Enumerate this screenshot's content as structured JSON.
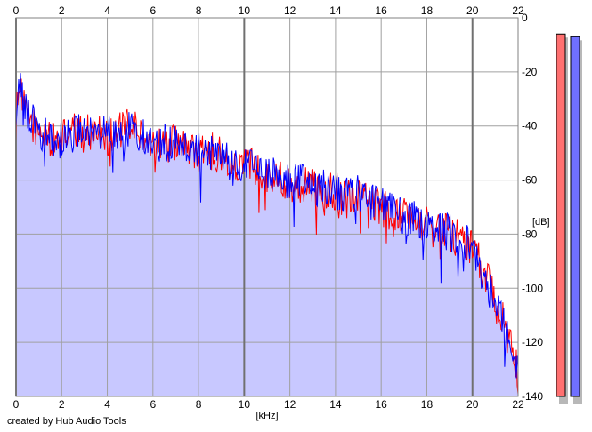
{
  "credit": "created by Hub Audio Tools",
  "chart_data": {
    "type": "area",
    "xlabel": "[kHz]",
    "ylabel": "[dB]",
    "xlim": [
      0,
      22
    ],
    "ylim": [
      -140,
      0
    ],
    "xticks": [
      0,
      2,
      4,
      6,
      8,
      10,
      12,
      14,
      16,
      18,
      20,
      22
    ],
    "xtick_labels": [
      "0",
      "2",
      "4",
      "6",
      "8",
      "10",
      "12",
      "14",
      "16",
      "18",
      "20",
      "22"
    ],
    "yticks": [
      0,
      -20,
      -40,
      -60,
      -80,
      -100,
      -120,
      -140
    ],
    "ytick_labels": [
      "0",
      "-20",
      "-40",
      "-60",
      "-80",
      "-100",
      "-120",
      "-140"
    ],
    "grid": true,
    "fill_color": "#c8c8ff",
    "series": [
      {
        "color": "#ff0000",
        "x": [
          0,
          0.1,
          0.2,
          0.3,
          0.5,
          0.8,
          1.0,
          1.3,
          1.6,
          2.0,
          2.5,
          3.0,
          3.5,
          4.0,
          4.5,
          5.0,
          5.5,
          6.0,
          6.5,
          7.0,
          7.5,
          8.0,
          8.5,
          9.0,
          9.5,
          10.0,
          10.5,
          11.0,
          11.5,
          12.0,
          12.5,
          13.0,
          13.5,
          14.0,
          14.5,
          15.0,
          15.5,
          16.0,
          16.5,
          17.0,
          17.5,
          18.0,
          18.5,
          19.0,
          19.5,
          20.0,
          20.3,
          20.6,
          21.0,
          21.3,
          21.6,
          21.8,
          22.0
        ],
        "values": [
          -40,
          -22,
          -28,
          -32,
          -36,
          -40,
          -44,
          -42,
          -46,
          -44,
          -42,
          -43,
          -41,
          -44,
          -42,
          -40,
          -43,
          -45,
          -47,
          -46,
          -48,
          -50,
          -49,
          -51,
          -53,
          -54,
          -55,
          -58,
          -59,
          -61,
          -62,
          -62,
          -64,
          -64,
          -65,
          -66,
          -67,
          -70,
          -72,
          -73,
          -75,
          -76,
          -78,
          -80,
          -82,
          -85,
          -90,
          -96,
          -102,
          -110,
          -118,
          -124,
          -133
        ]
      },
      {
        "color": "#0000ff",
        "x": [
          0,
          0.1,
          0.2,
          0.3,
          0.5,
          0.8,
          1.0,
          1.3,
          1.6,
          2.0,
          2.5,
          3.0,
          3.5,
          4.0,
          4.5,
          5.0,
          5.5,
          6.0,
          6.5,
          7.0,
          7.5,
          8.0,
          8.5,
          9.0,
          9.5,
          10.0,
          10.5,
          11.0,
          11.5,
          12.0,
          12.5,
          13.0,
          13.5,
          14.0,
          14.5,
          15.0,
          15.5,
          16.0,
          16.5,
          17.0,
          17.5,
          18.0,
          18.5,
          19.0,
          19.5,
          20.0,
          20.3,
          20.6,
          21.0,
          21.3,
          21.6,
          21.8,
          22.0
        ],
        "values": [
          -35,
          -20,
          -26,
          -31,
          -35,
          -39,
          -43,
          -43,
          -45,
          -45,
          -43,
          -42,
          -42,
          -43,
          -43,
          -41,
          -44,
          -44,
          -46,
          -47,
          -47,
          -49,
          -50,
          -50,
          -52,
          -55,
          -56,
          -57,
          -60,
          -60,
          -61,
          -63,
          -63,
          -65,
          -64,
          -65,
          -68,
          -69,
          -71,
          -74,
          -74,
          -77,
          -79,
          -79,
          -83,
          -84,
          -92,
          -98,
          -104,
          -112,
          -120,
          -126,
          -131
        ]
      }
    ],
    "meters": [
      {
        "color": "#ff7070",
        "value": -6
      },
      {
        "color": "#7070ff",
        "value": -7
      }
    ]
  }
}
